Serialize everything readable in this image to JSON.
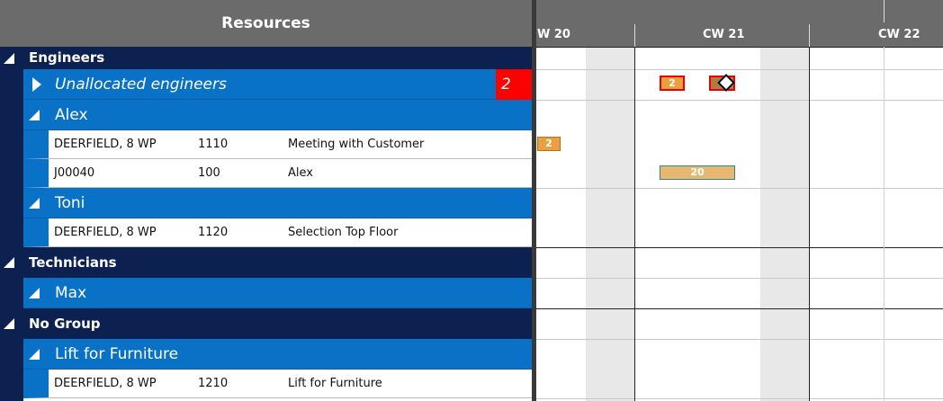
{
  "header": {
    "title": "Resources"
  },
  "groups": [
    {
      "name": "Engineers",
      "resources": [
        {
          "name": "Unallocated engineers",
          "count": "2",
          "rows": []
        },
        {
          "name": "Alex",
          "rows": [
            [
              "DEERFIELD, 8 WP",
              "1110",
              "Meeting with Customer"
            ],
            [
              "J00040",
              "100",
              "Alex"
            ]
          ]
        },
        {
          "name": "Toni",
          "rows": [
            [
              "DEERFIELD, 8 WP",
              "1120",
              "Selection Top Floor"
            ]
          ]
        }
      ]
    },
    {
      "name": "Technicians",
      "resources": [
        {
          "name": "Max",
          "rows": []
        }
      ]
    },
    {
      "name": "No Group",
      "resources": [
        {
          "name": "Lift for Furniture",
          "rows": [
            [
              "DEERFIELD, 8 WP",
              "1210",
              "Lift for Furniture"
            ]
          ]
        }
      ]
    }
  ],
  "timeline": {
    "weeks": [
      "W 20",
      "CW 21",
      "CW 22"
    ]
  },
  "bars": [
    {
      "label": "2"
    },
    {
      "label": "2"
    },
    {
      "label": "20"
    }
  ]
}
